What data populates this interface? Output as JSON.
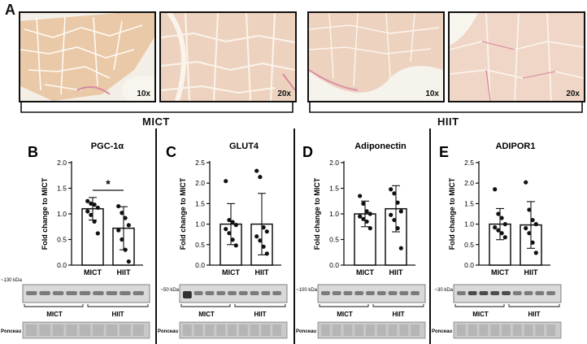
{
  "panel_a": {
    "label": "A",
    "images": [
      {
        "magnification": "10x",
        "group": "MICT"
      },
      {
        "magnification": "20x",
        "group": "MICT"
      },
      {
        "magnification": "10x",
        "group": "HIIT"
      },
      {
        "magnification": "20x",
        "group": "HIIT"
      }
    ],
    "groups": [
      "MICT",
      "HIIT"
    ]
  },
  "y_axis_label": "Fold change to MICT",
  "chart_data": [
    {
      "type": "bar",
      "panel": "B",
      "title": "PGC-1α",
      "categories": [
        "MICT",
        "HIIT"
      ],
      "values": [
        1.1,
        0.72
      ],
      "sd": [
        0.22,
        0.42
      ],
      "points": [
        [
          1.25,
          1.2,
          1.18,
          1.12,
          1.05,
          0.98,
          0.85,
          0.62
        ],
        [
          1.15,
          1.02,
          0.92,
          0.78,
          0.68,
          0.5,
          0.3,
          0.07
        ]
      ],
      "ylim": [
        0,
        2.0
      ],
      "yticks": [
        0.0,
        0.5,
        1.0,
        1.5,
        2.0
      ],
      "ylabel": "Fold change to MICT",
      "significance": "*",
      "blot_kda": "~130 kDa"
    },
    {
      "type": "bar",
      "panel": "C",
      "title": "GLUT4",
      "categories": [
        "MICT",
        "HIIT"
      ],
      "values": [
        1.0,
        1.0
      ],
      "sd": [
        0.5,
        0.75
      ],
      "points": [
        [
          2.05,
          1.1,
          1.05,
          0.98,
          0.88,
          0.78,
          0.62,
          0.48
        ],
        [
          2.3,
          2.15,
          0.92,
          0.82,
          0.7,
          0.6,
          0.45,
          0.28
        ]
      ],
      "ylim": [
        0,
        2.5
      ],
      "yticks": [
        0.0,
        0.5,
        1.0,
        1.5,
        2.0,
        2.5
      ],
      "ylabel": "Fold change to MICT",
      "blot_kda": "~50 kDa"
    },
    {
      "type": "bar",
      "panel": "D",
      "title": "Adiponectin",
      "categories": [
        "MICT",
        "HIIT"
      ],
      "values": [
        1.0,
        1.1
      ],
      "sd": [
        0.25,
        0.45
      ],
      "points": [
        [
          1.35,
          1.2,
          1.05,
          1.0,
          0.95,
          0.9,
          0.85,
          0.72
        ],
        [
          1.48,
          1.4,
          1.22,
          1.05,
          0.98,
          0.88,
          0.72,
          0.33
        ]
      ],
      "ylim": [
        0,
        2.0
      ],
      "yticks": [
        0.0,
        0.5,
        1.0,
        1.5,
        2.0
      ],
      "ylabel": "Fold change to MICT",
      "blot_kda": "~100 kDa"
    },
    {
      "type": "bar",
      "panel": "E",
      "title": "ADIPOR1",
      "categories": [
        "MICT",
        "HIIT"
      ],
      "values": [
        1.0,
        0.98
      ],
      "sd": [
        0.38,
        0.57
      ],
      "points": [
        [
          1.85,
          1.25,
          1.15,
          1.0,
          0.92,
          0.85,
          0.78,
          0.68
        ],
        [
          2.02,
          1.35,
          1.1,
          1.0,
          0.9,
          0.78,
          0.55,
          0.3
        ]
      ],
      "ylim": [
        0,
        2.5
      ],
      "yticks": [
        0.0,
        0.5,
        1.0,
        1.5,
        2.0,
        2.5
      ],
      "ylabel": "Fold change to MICT",
      "blot_kda": "~30 kDa"
    }
  ],
  "blots": {
    "group_labels": [
      "MICT",
      "HIIT"
    ],
    "ponceau_label": "Ponceau"
  }
}
